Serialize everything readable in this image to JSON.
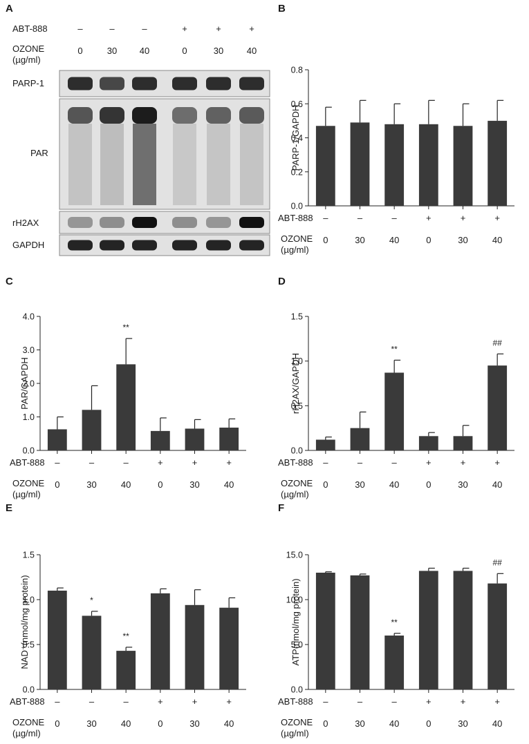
{
  "colors": {
    "bar": "#3a3a3a",
    "axis": "#222222",
    "band": "#111111",
    "blot_bg": "#e2e2e2"
  },
  "blot": {
    "panel_label": "A",
    "treatment_label": "ABT-888",
    "treatment_signs": [
      "–",
      "–",
      "–",
      "+",
      "+",
      "+"
    ],
    "dose_label": "OZONE",
    "dose_unit": "(µg/ml)",
    "doses": [
      "0",
      "30",
      "40",
      "0",
      "30",
      "40"
    ],
    "rows": [
      {
        "label": "PARP-1",
        "intensity": [
          0.85,
          0.7,
          0.85,
          0.85,
          0.85,
          0.85
        ]
      },
      {
        "label": "PAR",
        "intensity": [
          0.55,
          0.8,
          1.0,
          0.35,
          0.45,
          0.5
        ]
      },
      {
        "label": "rH2AX",
        "intensity": [
          0.25,
          0.3,
          1.0,
          0.3,
          0.25,
          1.0
        ]
      },
      {
        "label": "GAPDH",
        "intensity": [
          0.9,
          0.9,
          0.9,
          0.9,
          0.9,
          0.9
        ]
      }
    ]
  },
  "chart_data": [
    {
      "panel": "B",
      "type": "bar",
      "ylabel": "PARP-1/GAPDH",
      "ylim": [
        0,
        0.8
      ],
      "yticks": [
        "0.0",
        "0.2",
        "0.4",
        "0.6",
        "0.8"
      ],
      "values": [
        0.47,
        0.49,
        0.48,
        0.48,
        0.47,
        0.5
      ],
      "errors": [
        0.11,
        0.13,
        0.12,
        0.14,
        0.13,
        0.12
      ],
      "annotations": [
        "",
        "",
        "",
        "",
        "",
        ""
      ],
      "treatment_label": "ABT-888",
      "treatment_signs": [
        "–",
        "–",
        "–",
        "+",
        "+",
        "+"
      ],
      "dose_label": "OZONE",
      "dose_unit": "(µg/ml)",
      "categories": [
        "0",
        "30",
        "40",
        "0",
        "30",
        "40"
      ]
    },
    {
      "panel": "C",
      "type": "bar",
      "ylabel": "PAR/GAPDH",
      "ylim": [
        0,
        4.0
      ],
      "yticks": [
        "0.0",
        "1.0",
        "2.0",
        "3.0",
        "4.0"
      ],
      "values": [
        0.63,
        1.21,
        2.57,
        0.58,
        0.65,
        0.68
      ],
      "errors": [
        0.37,
        0.72,
        0.77,
        0.39,
        0.27,
        0.26
      ],
      "annotations": [
        "",
        "",
        "**",
        "",
        "",
        ""
      ],
      "treatment_label": "ABT-888",
      "treatment_signs": [
        "–",
        "–",
        "–",
        "+",
        "+",
        "+"
      ],
      "dose_label": "OZONE",
      "dose_unit": "(µg/ml)",
      "categories": [
        "0",
        "30",
        "40",
        "0",
        "30",
        "40"
      ]
    },
    {
      "panel": "D",
      "type": "bar",
      "ylabel": "rH2AX/GAPDH",
      "ylim": [
        0,
        1.5
      ],
      "yticks": [
        "0.0",
        "0.5",
        "1.0",
        "1.5"
      ],
      "values": [
        0.12,
        0.25,
        0.87,
        0.16,
        0.16,
        0.95
      ],
      "errors": [
        0.03,
        0.18,
        0.14,
        0.04,
        0.12,
        0.13
      ],
      "annotations": [
        "",
        "",
        "**",
        "",
        "",
        "##"
      ],
      "treatment_label": "ABT-888",
      "treatment_signs": [
        "–",
        "–",
        "–",
        "+",
        "+",
        "+"
      ],
      "dose_label": "OZONE",
      "dose_unit": "(µg/ml)",
      "categories": [
        "0",
        "30",
        "40",
        "0",
        "30",
        "40"
      ]
    },
    {
      "panel": "E",
      "type": "bar",
      "ylabel": "NAD⁺(nmol/mg protein)",
      "ylim": [
        0,
        1.5
      ],
      "yticks": [
        "0.0",
        "0.5",
        "1.0",
        "1.5"
      ],
      "values": [
        1.1,
        0.82,
        0.43,
        1.07,
        0.94,
        0.91
      ],
      "errors": [
        0.03,
        0.05,
        0.04,
        0.05,
        0.17,
        0.11
      ],
      "annotations": [
        "",
        "*",
        "**",
        "",
        "",
        ""
      ],
      "treatment_label": "ABT-888",
      "treatment_signs": [
        "–",
        "–",
        "–",
        "+",
        "+",
        "+"
      ],
      "dose_label": "OZONE",
      "dose_unit": "(µg/ml)",
      "categories": [
        "0",
        "30",
        "40",
        "0",
        "30",
        "40"
      ]
    },
    {
      "panel": "F",
      "type": "bar",
      "ylabel": "ATP(nmol/mg protein)",
      "ylim": [
        0,
        15.0
      ],
      "yticks": [
        "0.0",
        "5.0",
        "10.0",
        "15.0"
      ],
      "values": [
        13.0,
        12.7,
        6.0,
        13.2,
        13.2,
        11.8
      ],
      "errors": [
        0.1,
        0.15,
        0.25,
        0.3,
        0.3,
        1.1
      ],
      "annotations": [
        "",
        "",
        "**",
        "",
        "",
        "##"
      ],
      "treatment_label": "ABT-888",
      "treatment_signs": [
        "–",
        "–",
        "–",
        "+",
        "+",
        "+"
      ],
      "dose_label": "OZONE",
      "dose_unit": "(µg/ml)",
      "categories": [
        "0",
        "30",
        "40",
        "0",
        "30",
        "40"
      ]
    }
  ]
}
